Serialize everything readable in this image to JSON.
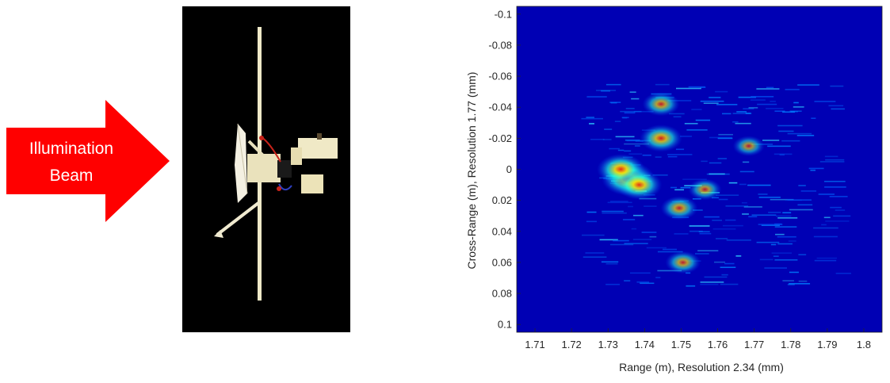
{
  "arrow": {
    "line1": "Illumination",
    "line2": "Beam",
    "color": "#ff0000",
    "text_color": "#ffffff"
  },
  "photo": {
    "background": "#000000",
    "subject_color": "#f2ecd0"
  },
  "chart_data": {
    "type": "heatmap",
    "title": "",
    "xlabel": "Range (m), Resolution 2.34 (mm)",
    "ylabel": "Cross-Range (m), Resolution 1.77 (mm)",
    "xlim": [
      1.705,
      1.805
    ],
    "ylim": [
      -0.105,
      0.105
    ],
    "y_reversed": true,
    "xticks": [
      1.71,
      1.72,
      1.73,
      1.74,
      1.75,
      1.76,
      1.77,
      1.78,
      1.79,
      1.8
    ],
    "xtick_labels": [
      "1.71",
      "1.72",
      "1.73",
      "1.74",
      "1.75",
      "1.76",
      "1.77",
      "1.78",
      "1.79",
      "1.8"
    ],
    "yticks": [
      -0.1,
      -0.08,
      -0.06,
      -0.04,
      -0.02,
      0,
      0.02,
      0.04,
      0.06,
      0.08,
      0.1
    ],
    "ytick_labels": [
      "-0.1",
      "-0.08",
      "-0.06",
      "-0.04",
      "-0.02",
      "0",
      "0.02",
      "0.04",
      "0.06",
      "0.08",
      "0.1"
    ],
    "colormap": "jet",
    "background_color": "#0000b4",
    "grid": false,
    "hot_spots": [
      {
        "x": 1.7355,
        "y": 0.006,
        "intensity": 1.0
      },
      {
        "x": 1.7335,
        "y": 0.0,
        "intensity": 0.85
      },
      {
        "x": 1.7385,
        "y": 0.01,
        "intensity": 0.8
      },
      {
        "x": 1.7445,
        "y": -0.02,
        "intensity": 0.7
      },
      {
        "x": 1.7445,
        "y": -0.042,
        "intensity": 0.55
      },
      {
        "x": 1.7495,
        "y": 0.025,
        "intensity": 0.55
      },
      {
        "x": 1.7505,
        "y": 0.06,
        "intensity": 0.5
      },
      {
        "x": 1.7565,
        "y": 0.013,
        "intensity": 0.45
      },
      {
        "x": 1.7685,
        "y": -0.015,
        "intensity": 0.4
      }
    ]
  }
}
